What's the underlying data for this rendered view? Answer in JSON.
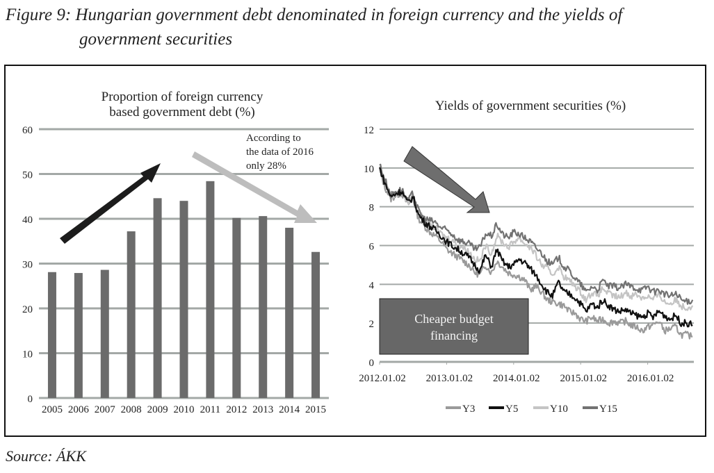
{
  "figure": {
    "title_line1": "Figure 9: Hungarian government debt denominated in foreign currency and the yields of",
    "title_line2": "government securities",
    "source": "Source: ÁKK"
  },
  "colors": {
    "bar": "#6b6b6b",
    "grid": "#a3a8a6",
    "up_arrow": "#1c1c1c",
    "down_arrow_light": "#bdbdbd",
    "down_arrow_dark": "#6e6e6e",
    "box": "#676767",
    "Y3": "#9a9a9a",
    "Y5": "#111111",
    "Y10": "#c4c4c4",
    "Y15": "#727272"
  },
  "chart_data": [
    {
      "type": "bar",
      "title": "Proportion of foreign currency based government debt (%)",
      "title_lines": [
        "Proportion of foreign currency",
        "based government debt (%)"
      ],
      "categories": [
        "2005",
        "2006",
        "2007",
        "2008",
        "2009",
        "2010",
        "2011",
        "2012",
        "2013",
        "2014",
        "2015"
      ],
      "values": [
        28.1,
        27.9,
        28.6,
        37.2,
        44.6,
        44.0,
        48.4,
        40.2,
        40.6,
        38.0,
        32.6
      ],
      "ylim": [
        0,
        60
      ],
      "yticks": [
        "0",
        "10",
        "20",
        "30",
        "40",
        "50",
        "60"
      ],
      "grid": true,
      "annotation_lines": [
        "According to",
        "the data of 2016",
        "only 28%"
      ]
    },
    {
      "type": "line",
      "title": "Yields of government securities (%)",
      "x_ticks": [
        "2012.01.02",
        "2013.01.02",
        "2014.01.02",
        "2015.01.02",
        "2016.01.02"
      ],
      "x_range_years": [
        2012.0,
        2016.7
      ],
      "ylim": [
        0,
        12
      ],
      "yticks": [
        "0",
        "2",
        "4",
        "6",
        "8",
        "10",
        "12"
      ],
      "grid": true,
      "legend_position": "bottom",
      "x": [
        2012.0,
        2012.08,
        2012.17,
        2012.25,
        2012.33,
        2012.42,
        2012.5,
        2012.58,
        2012.67,
        2012.75,
        2012.83,
        2012.92,
        2013.0,
        2013.08,
        2013.17,
        2013.25,
        2013.33,
        2013.42,
        2013.5,
        2013.58,
        2013.67,
        2013.75,
        2013.83,
        2013.92,
        2014.0,
        2014.08,
        2014.17,
        2014.25,
        2014.33,
        2014.42,
        2014.5,
        2014.58,
        2014.67,
        2014.75,
        2014.83,
        2014.92,
        2015.0,
        2015.08,
        2015.17,
        2015.25,
        2015.33,
        2015.42,
        2015.5,
        2015.58,
        2015.67,
        2015.75,
        2015.83,
        2015.92,
        2016.0,
        2016.08,
        2016.17,
        2016.25,
        2016.33,
        2016.42,
        2016.5,
        2016.58,
        2016.67
      ],
      "series": [
        {
          "name": "Y3",
          "values": [
            9.9,
            9.0,
            8.4,
            8.6,
            8.7,
            8.1,
            8.4,
            7.4,
            7.0,
            6.7,
            6.5,
            6.2,
            5.8,
            5.6,
            5.4,
            5.2,
            5.0,
            4.6,
            4.5,
            5.0,
            4.6,
            5.2,
            4.9,
            4.6,
            4.5,
            4.4,
            4.2,
            3.7,
            3.9,
            3.6,
            3.2,
            3.1,
            3.0,
            2.9,
            2.6,
            2.5,
            2.2,
            2.1,
            2.3,
            2.1,
            2.2,
            2.0,
            2.1,
            2.0,
            2.1,
            1.9,
            1.8,
            1.6,
            1.8,
            1.9,
            2.1,
            1.6,
            1.7,
            1.8,
            1.4,
            1.4,
            1.3
          ]
        },
        {
          "name": "Y5",
          "values": [
            10.0,
            9.2,
            8.5,
            8.7,
            8.8,
            8.2,
            8.5,
            7.6,
            7.2,
            7.0,
            6.8,
            6.5,
            6.2,
            6.0,
            5.8,
            5.6,
            5.4,
            5.0,
            4.7,
            5.5,
            4.9,
            5.8,
            5.2,
            4.9,
            5.0,
            5.3,
            5.1,
            4.8,
            4.5,
            4.0,
            3.6,
            3.4,
            4.1,
            3.6,
            3.5,
            3.3,
            3.0,
            2.6,
            3.0,
            2.8,
            3.2,
            2.9,
            2.7,
            2.6,
            2.7,
            2.5,
            2.4,
            2.3,
            2.5,
            2.3,
            2.6,
            2.4,
            2.2,
            2.4,
            2.0,
            2.0,
            1.9
          ]
        },
        {
          "name": "Y10",
          "values": [
            10.1,
            9.3,
            8.5,
            8.7,
            8.8,
            8.2,
            8.6,
            7.7,
            7.3,
            7.1,
            6.9,
            6.6,
            6.4,
            6.3,
            6.0,
            5.9,
            5.7,
            5.3,
            5.2,
            6.0,
            5.6,
            6.5,
            6.2,
            5.9,
            6.2,
            6.4,
            6.1,
            5.9,
            5.5,
            5.0,
            4.8,
            4.5,
            4.9,
            4.4,
            4.2,
            3.9,
            3.6,
            3.2,
            3.6,
            3.4,
            3.8,
            3.5,
            3.4,
            3.3,
            3.6,
            3.4,
            3.5,
            3.3,
            3.4,
            3.2,
            3.5,
            3.1,
            3.0,
            3.2,
            2.9,
            2.8,
            2.9
          ]
        },
        {
          "name": "Y15",
          "values": [
            10.2,
            9.4,
            8.6,
            8.8,
            8.9,
            8.3,
            8.7,
            7.8,
            7.4,
            7.3,
            7.2,
            6.9,
            6.8,
            6.6,
            6.3,
            6.2,
            6.1,
            5.8,
            5.9,
            6.6,
            6.5,
            7.1,
            6.6,
            6.4,
            6.7,
            6.6,
            6.4,
            6.2,
            5.9,
            5.6,
            5.2,
            5.0,
            5.4,
            4.9,
            4.7,
            4.3,
            4.0,
            3.6,
            3.9,
            3.7,
            4.2,
            3.9,
            3.9,
            3.8,
            4.0,
            3.9,
            3.8,
            3.7,
            3.9,
            3.6,
            3.7,
            3.5,
            3.4,
            3.5,
            3.2,
            3.1,
            3.2
          ]
        }
      ],
      "annotation_box": "Cheaper budget financing",
      "annotation_box_lines": [
        "Cheaper budget",
        "financing"
      ]
    }
  ]
}
